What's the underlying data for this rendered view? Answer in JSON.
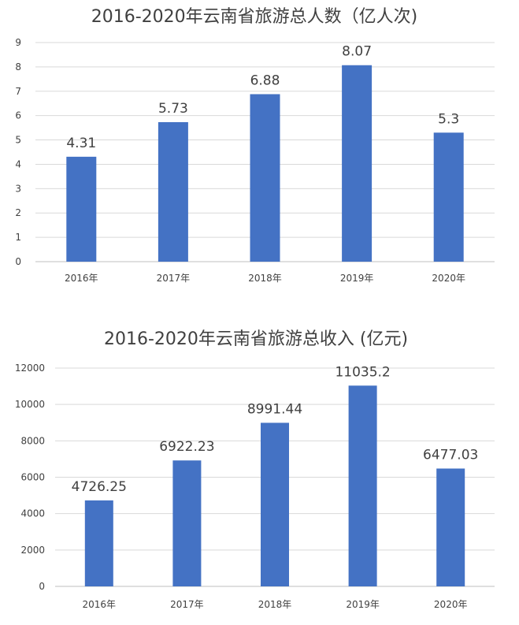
{
  "chart_data": [
    {
      "type": "bar",
      "title": "2016-2020年云南省旅游总人数（亿人次)",
      "categories": [
        "2016年",
        "2017年",
        "2018年",
        "2019年",
        "2020年"
      ],
      "values": [
        4.31,
        5.73,
        6.88,
        8.07,
        5.3
      ],
      "data_labels": [
        "4.31",
        "5.73",
        "6.88",
        "8.07",
        "5.3"
      ],
      "ylim": [
        0,
        9
      ],
      "yticks": [
        0,
        1,
        2,
        3,
        4,
        5,
        6,
        7,
        8,
        9
      ],
      "grid": true,
      "color": "#4472c4"
    },
    {
      "type": "bar",
      "title": "2016-2020年云南省旅游总收入 (亿元)",
      "categories": [
        "2016年",
        "2017年",
        "2018年",
        "2019年",
        "2020年"
      ],
      "values": [
        4726.25,
        6922.23,
        8991.44,
        11035.2,
        6477.03
      ],
      "data_labels": [
        "4726.25",
        "6922.23",
        "8991.44",
        "11035.2",
        "6477.03"
      ],
      "ylim": [
        0,
        12000
      ],
      "yticks": [
        0,
        2000,
        4000,
        6000,
        8000,
        10000,
        12000
      ],
      "grid": true,
      "color": "#4472c4"
    }
  ]
}
